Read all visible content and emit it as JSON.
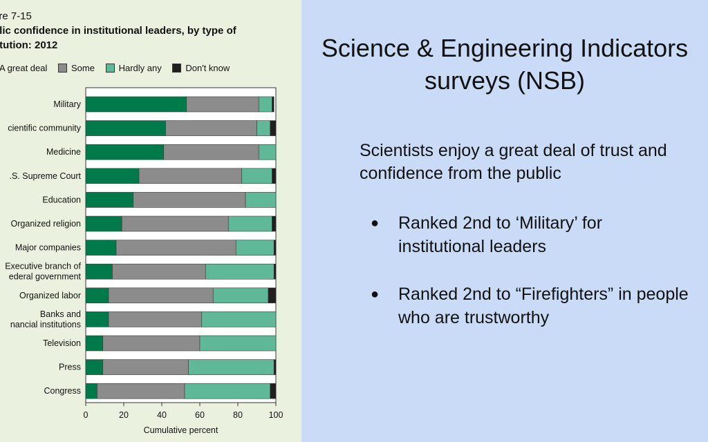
{
  "figure": {
    "label": "ure 7-15",
    "title_line1": "blic confidence in institutional leaders, by type of",
    "title_line2": "titution: 2012"
  },
  "legend": [
    {
      "label": "A great deal",
      "color": "#007a4a"
    },
    {
      "label": "Some",
      "color": "#8c8c8c"
    },
    {
      "label": "Hardly any",
      "color": "#5fb898"
    },
    {
      "label": "Don't know",
      "color": "#231f20"
    }
  ],
  "chart_data": {
    "type": "bar",
    "orientation": "horizontal",
    "stacked": true,
    "categories": [
      [
        "Military"
      ],
      [
        "cientific community"
      ],
      [
        "Medicine"
      ],
      [
        ".S. Supreme Court"
      ],
      [
        "Education"
      ],
      [
        "Organized religion"
      ],
      [
        "Major companies"
      ],
      [
        "Executive branch of",
        "ederal government"
      ],
      [
        "Organized labor"
      ],
      [
        "Banks and",
        "nancial institutions"
      ],
      [
        "Television"
      ],
      [
        "Press"
      ],
      [
        "Congress"
      ]
    ],
    "series": [
      {
        "name": "A great deal",
        "values": [
          53,
          42,
          41,
          28,
          25,
          19,
          16,
          14,
          12,
          12,
          9,
          9,
          6
        ],
        "color": "#007a4a"
      },
      {
        "name": "Some",
        "values": [
          38,
          48,
          50,
          54,
          59,
          56,
          63,
          49,
          55,
          49,
          51,
          45,
          46
        ],
        "color": "#8c8c8c"
      },
      {
        "name": "Hardly any",
        "values": [
          7,
          7,
          9,
          16,
          16,
          23,
          20,
          36,
          29,
          39,
          40,
          45,
          45
        ],
        "color": "#5fb898"
      },
      {
        "name": "Don't know",
        "values": [
          1,
          3,
          0,
          2,
          0,
          2,
          1,
          1,
          4,
          0,
          0,
          1,
          3
        ],
        "color": "#231f20"
      }
    ],
    "xlim": [
      0,
      100
    ],
    "xticks": [
      0,
      20,
      40,
      60,
      80,
      100
    ],
    "xlabel": "Cumulative percent",
    "ylabel": "",
    "legend_position": "top"
  },
  "slide": {
    "title_line1": "Science & Engineering Indicators",
    "title_line2": "surveys (NSB)",
    "intro": "Scientists enjoy a great deal of trust and confidence from the public",
    "bullets": [
      "Ranked 2nd to ‘Military’ for institutional leaders",
      "Ranked 2nd to “Firefighters” in people who are trustworthy"
    ],
    "bullet_symbol": "●"
  }
}
